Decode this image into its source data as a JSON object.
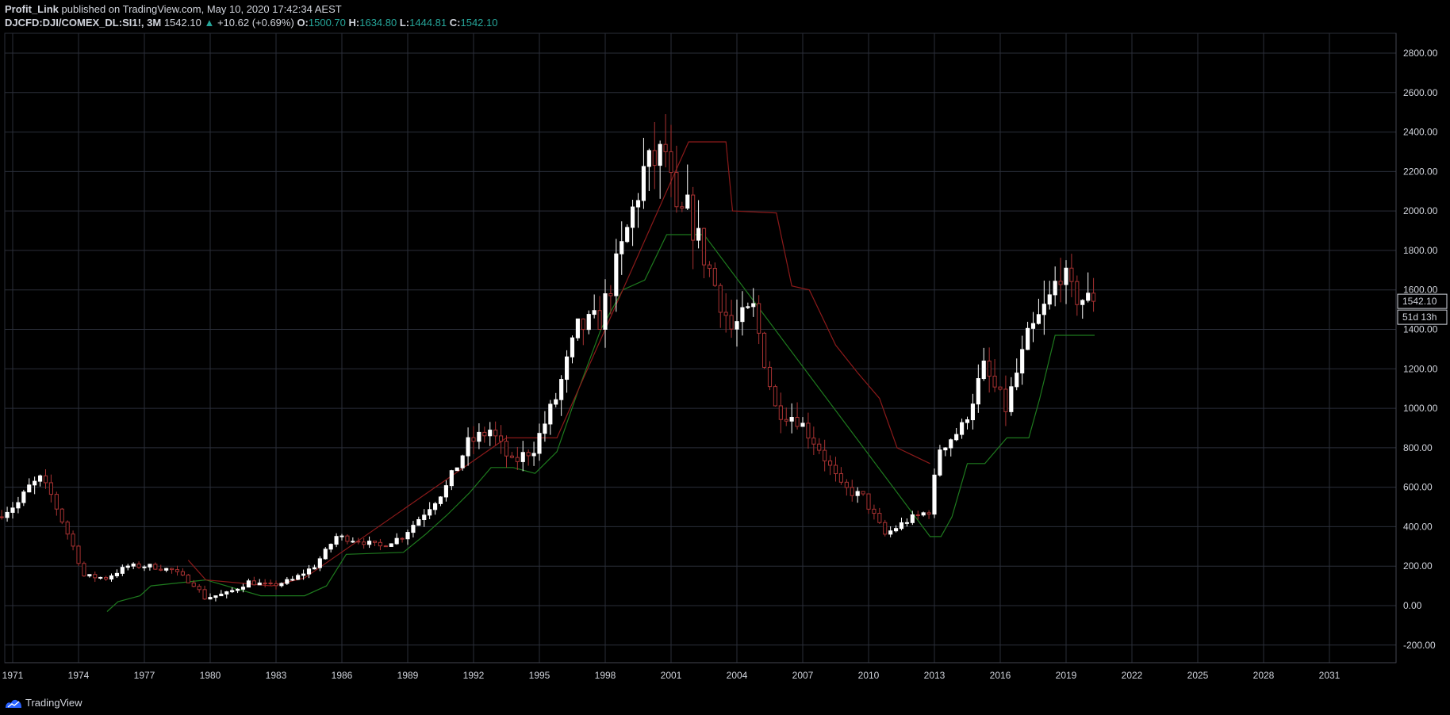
{
  "header": {
    "publisher": "Profit_Link",
    "published_text": " published on TradingView.com, May 10, 2020 17:42:34 AEST",
    "symbol": "DJCFD:DJI/COMEX_DL:SI1!, 3M",
    "last": "1542.10",
    "change_arrow": "▲",
    "change": "+10.62 (+0.69%)",
    "open_label": "O:",
    "open": "1500.70",
    "high_label": "H:",
    "high": "1634.80",
    "low_label": "L:",
    "low": "1444.81",
    "close_label": "C:",
    "close": "1542.10"
  },
  "footer": {
    "brand": "TradingView",
    "logo_icon": "tradingview-logo-icon"
  },
  "colors": {
    "background": "#000000",
    "grid": "#2a2e39",
    "up": "#ffffff",
    "down": "#a83232",
    "support_line": "#1e7a1e",
    "resistance_line": "#8b1a1a",
    "accent": "#26a69a"
  },
  "chart_data": {
    "type": "candlestick",
    "interval": "3M",
    "ylim": [
      -250,
      2880
    ],
    "y_ticks": [
      "2800.00",
      "2600.00",
      "2400.00",
      "2200.00",
      "2000.00",
      "1800.00",
      "1600.00",
      "1400.00",
      "1200.00",
      "1000.00",
      "800.00",
      "600.00",
      "400.00",
      "200.00",
      "0.00",
      "-200.00"
    ],
    "x_ticks": [
      "1971",
      "1974",
      "1977",
      "1980",
      "1983",
      "1986",
      "1989",
      "1992",
      "1995",
      "1998",
      "2001",
      "2004",
      "2007",
      "2010",
      "2013",
      "2016",
      "2019",
      "2022",
      "2025",
      "2028",
      "2031"
    ],
    "price_label": "1542.10",
    "countdown_label": "51d 13h",
    "grid": true,
    "series": [
      {
        "name": "ratio",
        "key_points": [
          [
            1970.5,
            450
          ],
          [
            1971.5,
            520
          ],
          [
            1972.0,
            600
          ],
          [
            1972.5,
            640
          ],
          [
            1973.0,
            560
          ],
          [
            1973.5,
            430
          ],
          [
            1974.0,
            300
          ],
          [
            1974.5,
            150
          ],
          [
            1975.5,
            140
          ],
          [
            1976.5,
            200
          ],
          [
            1977.5,
            200
          ],
          [
            1978.5,
            180
          ],
          [
            1979.5,
            110
          ],
          [
            1980.0,
            40
          ],
          [
            1981.0,
            60
          ],
          [
            1982.0,
            120
          ],
          [
            1983.0,
            100
          ],
          [
            1984.0,
            130
          ],
          [
            1985.0,
            200
          ],
          [
            1986.0,
            350
          ],
          [
            1987.0,
            330
          ],
          [
            1988.0,
            300
          ],
          [
            1989.0,
            350
          ],
          [
            1990.0,
            470
          ],
          [
            1991.0,
            600
          ],
          [
            1992.0,
            820
          ],
          [
            1993.0,
            890
          ],
          [
            1994.0,
            720
          ],
          [
            1995.0,
            800
          ],
          [
            1996.0,
            1050
          ],
          [
            1997.0,
            1400
          ],
          [
            1998.0,
            1450
          ],
          [
            1999.0,
            1800
          ],
          [
            2000.0,
            2200
          ],
          [
            2001.0,
            2300
          ],
          [
            2001.5,
            1950
          ],
          [
            2002.0,
            2000
          ],
          [
            2003.0,
            1700
          ],
          [
            2004.0,
            1400
          ],
          [
            2005.0,
            1500
          ],
          [
            2006.0,
            1000
          ],
          [
            2007.0,
            950
          ],
          [
            2008.0,
            800
          ],
          [
            2009.0,
            600
          ],
          [
            2010.0,
            550
          ],
          [
            2011.0,
            360
          ],
          [
            2012.0,
            430
          ],
          [
            2013.0,
            480
          ],
          [
            2013.5,
            800
          ],
          [
            2014.5,
            900
          ],
          [
            2015.5,
            1200
          ],
          [
            2016.5,
            1000
          ],
          [
            2017.5,
            1350
          ],
          [
            2018.5,
            1550
          ],
          [
            2019.0,
            1700
          ],
          [
            2019.5,
            1580
          ],
          [
            2020.3,
            1542.1
          ]
        ]
      },
      {
        "name": "support",
        "points": [
          [
            1975.3,
            -30
          ],
          [
            1975.8,
            20
          ],
          [
            1976.8,
            50
          ],
          [
            1977.3,
            100
          ],
          [
            1979.8,
            130
          ],
          [
            1982.3,
            50
          ],
          [
            1984.3,
            50
          ],
          [
            1985.3,
            100
          ],
          [
            1986.2,
            260
          ],
          [
            1988.8,
            270
          ],
          [
            1989.8,
            360
          ],
          [
            1990.8,
            460
          ],
          [
            1991.8,
            570
          ],
          [
            1992.8,
            700
          ],
          [
            1993.8,
            700
          ],
          [
            1994.8,
            670
          ],
          [
            1995.8,
            780
          ],
          [
            1996.8,
            1100
          ],
          [
            1997.8,
            1400
          ],
          [
            1998.8,
            1600
          ],
          [
            1999.8,
            1650
          ],
          [
            2000.8,
            1880
          ],
          [
            2001.8,
            1880
          ],
          [
            2002.5,
            1880
          ],
          [
            2012.8,
            350
          ],
          [
            2013.3,
            350
          ],
          [
            2013.8,
            450
          ],
          [
            2014.5,
            720
          ],
          [
            2015.3,
            720
          ],
          [
            2016.3,
            850
          ],
          [
            2017.3,
            850
          ],
          [
            2017.8,
            1050
          ],
          [
            2018.5,
            1370
          ],
          [
            2020.3,
            1370
          ]
        ]
      },
      {
        "name": "resistance",
        "points": [
          [
            1979.0,
            230
          ],
          [
            1979.8,
            130
          ],
          [
            1981.8,
            110
          ],
          [
            1982.8,
            100
          ],
          [
            1984.3,
            140
          ],
          [
            1993.5,
            850
          ],
          [
            1994.8,
            850
          ],
          [
            1995.8,
            850
          ],
          [
            2001.8,
            2350
          ],
          [
            2003.5,
            2350
          ],
          [
            2003.8,
            2000
          ],
          [
            2005.8,
            1990
          ],
          [
            2006.5,
            1620
          ],
          [
            2007.3,
            1600
          ],
          [
            2008.5,
            1320
          ],
          [
            2009.5,
            1180
          ],
          [
            2010.5,
            1050
          ],
          [
            2011.3,
            800
          ],
          [
            2012.8,
            720
          ]
        ]
      }
    ]
  }
}
